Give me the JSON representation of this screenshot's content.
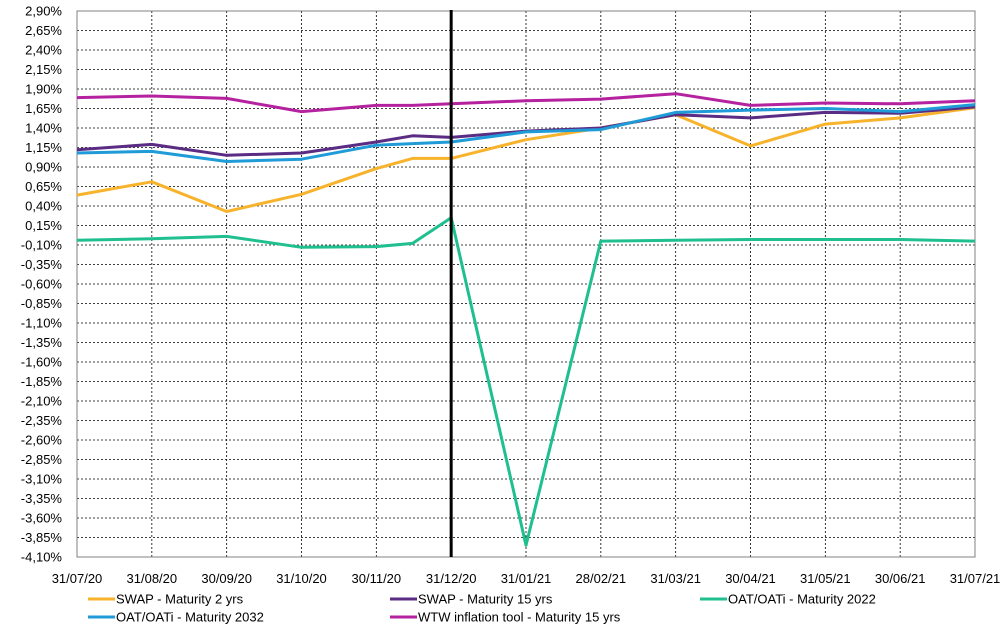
{
  "chart_data": {
    "type": "line",
    "title": "",
    "xlabel": "",
    "ylabel": "",
    "categories": [
      "31/07/20",
      "31/08/20",
      "30/09/20",
      "31/10/20",
      "30/11/20",
      "31/12/20",
      "31/01/21",
      "28/02/21",
      "31/03/21",
      "30/04/21",
      "31/05/21",
      "30/06/21",
      "31/07/21"
    ],
    "ylim": [
      -4.1,
      2.9
    ],
    "ytick_step": 0.25,
    "yticks": [
      "2,90%",
      "2,65%",
      "2,40%",
      "2,15%",
      "1,90%",
      "1,65%",
      "1,40%",
      "1,15%",
      "0,90%",
      "0,65%",
      "0,40%",
      "0,15%",
      "-0,10%",
      "-0,35%",
      "-0,60%",
      "-0,85%",
      "-1,10%",
      "-1,35%",
      "-1,60%",
      "-1,85%",
      "-2,10%",
      "-2,35%",
      "-2,60%",
      "-2,85%",
      "-3,10%",
      "-3,35%",
      "-3,60%",
      "-3,85%",
      "-4,10%"
    ],
    "grid": true,
    "vertical_marker": "31/12/20",
    "legend_position": "bottom",
    "series": [
      {
        "name": "SWAP - Maturity 2 yrs",
        "color": "#F7B32B",
        "points": [
          [
            "31/07/20",
            0.54
          ],
          [
            "31/08/20",
            0.71
          ],
          [
            "30/09/20",
            0.33
          ],
          [
            "31/10/20",
            0.55
          ],
          [
            "30/11/20",
            0.88
          ],
          [
            "15/12/20",
            1.01
          ],
          [
            "31/12/20",
            1.01
          ],
          [
            "31/01/21",
            1.25
          ],
          [
            "28/02/21",
            1.4
          ],
          [
            "31/03/21",
            1.57
          ],
          [
            "30/04/21",
            1.17
          ],
          [
            "31/05/21",
            1.45
          ],
          [
            "30/06/21",
            1.53
          ],
          [
            "31/07/21",
            1.66
          ]
        ]
      },
      {
        "name": "SWAP - Maturity 15 yrs",
        "color": "#5B2C83",
        "points": [
          [
            "31/07/20",
            1.12
          ],
          [
            "31/08/20",
            1.19
          ],
          [
            "30/09/20",
            1.05
          ],
          [
            "31/10/20",
            1.08
          ],
          [
            "30/11/20",
            1.22
          ],
          [
            "15/12/20",
            1.3
          ],
          [
            "31/12/20",
            1.28
          ],
          [
            "31/01/21",
            1.36
          ],
          [
            "28/02/21",
            1.4
          ],
          [
            "31/03/21",
            1.57
          ],
          [
            "30/04/21",
            1.53
          ],
          [
            "31/05/21",
            1.6
          ],
          [
            "30/06/21",
            1.59
          ],
          [
            "31/07/21",
            1.67
          ]
        ]
      },
      {
        "name": "OAT/OATi - Maturity 2022",
        "color": "#1FBF8F",
        "points": [
          [
            "31/07/20",
            -0.04
          ],
          [
            "31/08/20",
            -0.02
          ],
          [
            "30/09/20",
            0.01
          ],
          [
            "31/10/20",
            -0.13
          ],
          [
            "30/11/20",
            -0.12
          ],
          [
            "15/12/20",
            -0.08
          ],
          [
            "31/12/20",
            0.25
          ],
          [
            "31/01/21",
            -3.95
          ],
          [
            "28/02/21",
            -0.05
          ],
          [
            "31/03/21",
            -0.04
          ],
          [
            "30/04/21",
            -0.03
          ],
          [
            "31/05/21",
            -0.03
          ],
          [
            "30/06/21",
            -0.03
          ],
          [
            "31/07/21",
            -0.05
          ]
        ]
      },
      {
        "name": "OAT/OATi - Maturity 2032",
        "color": "#1F9BD7",
        "points": [
          [
            "31/07/20",
            1.08
          ],
          [
            "31/08/20",
            1.1
          ],
          [
            "30/09/20",
            0.97
          ],
          [
            "31/10/20",
            1.0
          ],
          [
            "30/11/20",
            1.18
          ],
          [
            "15/12/20",
            1.2
          ],
          [
            "31/12/20",
            1.22
          ],
          [
            "31/01/21",
            1.35
          ],
          [
            "28/02/21",
            1.38
          ],
          [
            "31/03/21",
            1.6
          ],
          [
            "30/04/21",
            1.63
          ],
          [
            "31/05/21",
            1.65
          ],
          [
            "30/06/21",
            1.61
          ],
          [
            "31/07/21",
            1.7
          ]
        ]
      },
      {
        "name": "WTW inflation tool - Maturity 15 yrs",
        "color": "#B5229F",
        "points": [
          [
            "31/07/20",
            1.79
          ],
          [
            "31/08/20",
            1.81
          ],
          [
            "30/09/20",
            1.78
          ],
          [
            "31/10/20",
            1.61
          ],
          [
            "30/11/20",
            1.69
          ],
          [
            "15/12/20",
            1.69
          ],
          [
            "31/12/20",
            1.71
          ],
          [
            "31/01/21",
            1.75
          ],
          [
            "28/02/21",
            1.77
          ],
          [
            "31/03/21",
            1.84
          ],
          [
            "30/04/21",
            1.69
          ],
          [
            "31/05/21",
            1.72
          ],
          [
            "30/06/21",
            1.71
          ],
          [
            "31/07/21",
            1.75
          ]
        ]
      }
    ]
  }
}
